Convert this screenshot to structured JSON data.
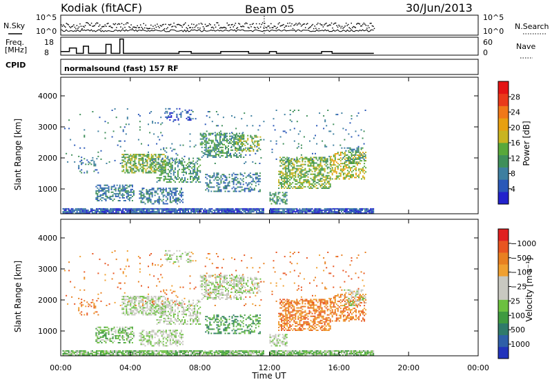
{
  "header": {
    "station": "Kodiak (fitACF)",
    "beam": "Beam 05",
    "date": "30/Jun/2013"
  },
  "strip": {
    "nsky_label": "N.Sky",
    "nsearch_label": "N.Search",
    "nsky_ticks": [
      "10^5",
      "10^0"
    ],
    "nsearch_ticks": [
      "10^5",
      "10^0"
    ],
    "freq_label_1": "Freq.",
    "freq_label_2": "[MHz]",
    "freq_ticks": [
      "18",
      "8"
    ],
    "nave_label": "Nave",
    "nave_ticks": [
      "60",
      "0"
    ],
    "cpid_label": "CPID",
    "cpid_value": "normalsound (fast) 157 RF"
  },
  "chart_data": [
    {
      "type": "heatmap",
      "name": "power",
      "ylabel": "Slant Range [km]",
      "y_ticks": [
        1000,
        2000,
        3000,
        4000
      ],
      "ylim": [
        200,
        4600
      ],
      "xlim": [
        0,
        24
      ],
      "colorbar": {
        "label": "Power [dB]",
        "ticks": [
          "4",
          "8",
          "12",
          "16",
          "20",
          "24",
          "28"
        ],
        "colors": [
          "#2222cc",
          "#2a58b8",
          "#3e7fa0",
          "#3f8f5a",
          "#58a83a",
          "#c8b420",
          "#e8a010",
          "#f07818",
          "#ea3a1a",
          "#e41414"
        ]
      }
    },
    {
      "type": "heatmap",
      "name": "velocity",
      "ylabel": "Slant Range [km]",
      "xlabel": "Time UT",
      "y_ticks": [
        1000,
        2000,
        3000,
        4000
      ],
      "ylim": [
        200,
        4600
      ],
      "xlim": [
        0,
        24
      ],
      "x_ticks": [
        "00:00",
        "04:00",
        "08:00",
        "12:00",
        "16:00",
        "20:00",
        "00:00"
      ],
      "colorbar": {
        "label": "Velocity [m s⁻¹]",
        "ticks": [
          "1000",
          "500",
          "100",
          "25",
          "−25",
          "−100",
          "−500",
          "−1000"
        ],
        "colors": [
          "#2233bb",
          "#2f5fa8",
          "#2f7a6a",
          "#3f9a40",
          "#6cc040",
          "#c8c8c0",
          "#c8c8c0",
          "#f0a030",
          "#e88020",
          "#e85520",
          "#e02020"
        ]
      }
    }
  ]
}
